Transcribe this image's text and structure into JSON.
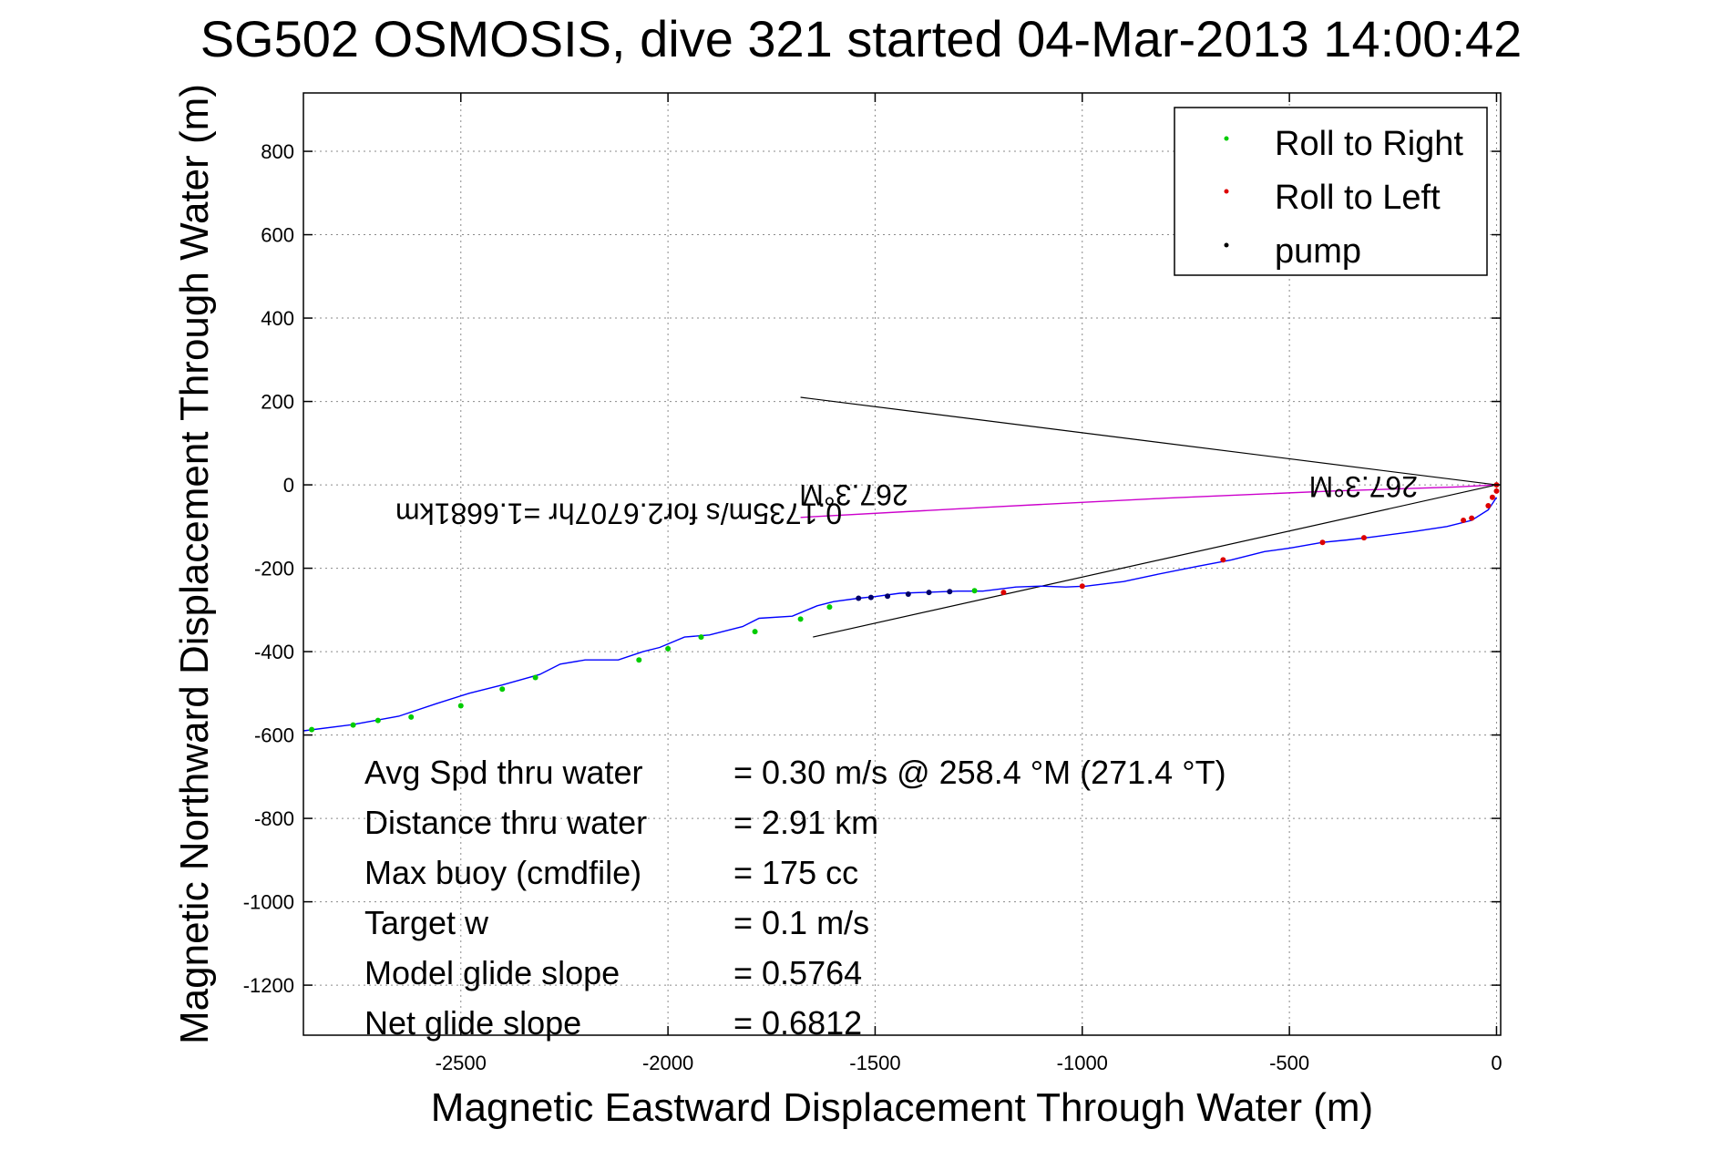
{
  "chart_data": {
    "type": "line",
    "title": "SG502 OSMOSIS, dive 321 started 04-Mar-2013 14:00:42",
    "xlabel": "Magnetic Eastward Displacement Through Water (m)",
    "ylabel": "Magnetic Northward Displacement Through Water (m)",
    "xlim": [
      -2880,
      10
    ],
    "ylim": [
      -1320,
      940
    ],
    "xticks": [
      -2500,
      -2000,
      -1500,
      -1000,
      -500,
      0
    ],
    "yticks": [
      -1200,
      -1000,
      -800,
      -600,
      -400,
      -200,
      0,
      200,
      400,
      600,
      800
    ],
    "grid": true,
    "legend_position": "top-right",
    "legend": [
      {
        "label": "Roll to Right",
        "color": "#00cc00"
      },
      {
        "label": "Roll to Left",
        "color": "#dd0000"
      },
      {
        "label": "pump",
        "color": "#000000"
      }
    ],
    "series": [
      {
        "color": "#0000ff",
        "x": [
          -2880,
          -2760,
          -2650,
          -2560,
          -2480,
          -2400,
          -2310,
          -2260,
          -2200,
          -2120,
          -2060,
          -2020,
          -1960,
          -1900,
          -1820,
          -1780,
          -1700,
          -1640,
          -1600,
          -1540,
          -1500,
          -1440,
          -1380,
          -1300,
          -1240,
          -1160,
          -1100,
          -1040,
          -990,
          -900,
          -820,
          -720,
          -640,
          -560,
          -500,
          -420,
          -360,
          -300,
          -200,
          -120,
          -60,
          -20,
          0
        ],
        "y": [
          -590,
          -575,
          -555,
          -525,
          -500,
          -480,
          -455,
          -430,
          -420,
          -420,
          -400,
          -390,
          -365,
          -360,
          -340,
          -320,
          -315,
          -290,
          -280,
          -272,
          -268,
          -260,
          -258,
          -255,
          -255,
          -245,
          -243,
          -245,
          -243,
          -232,
          -215,
          -195,
          -180,
          -160,
          -152,
          -138,
          -132,
          -125,
          -112,
          -100,
          -85,
          -60,
          -30
        ]
      },
      {
        "color": "#cc00cc",
        "x": [
          -1680,
          -1200,
          -800,
          -400,
          -100,
          0
        ],
        "y": [
          -78,
          -52,
          -32,
          -15,
          -5,
          0
        ]
      }
    ],
    "points": {
      "roll_right": [
        {
          "x": -2860,
          "y": -587
        },
        {
          "x": -2760,
          "y": -576
        },
        {
          "x": -2700,
          "y": -565
        },
        {
          "x": -2620,
          "y": -557
        },
        {
          "x": -2500,
          "y": -530
        },
        {
          "x": -2400,
          "y": -490
        },
        {
          "x": -2320,
          "y": -462
        },
        {
          "x": -2070,
          "y": -420
        },
        {
          "x": -2000,
          "y": -393
        },
        {
          "x": -1920,
          "y": -365
        },
        {
          "x": -1790,
          "y": -352
        },
        {
          "x": -1680,
          "y": -322
        },
        {
          "x": -1610,
          "y": -293
        },
        {
          "x": -1260,
          "y": -254
        }
      ],
      "roll_left": [
        {
          "x": -1190,
          "y": -258
        },
        {
          "x": -1000,
          "y": -243
        },
        {
          "x": -660,
          "y": -180
        },
        {
          "x": -420,
          "y": -138
        },
        {
          "x": -320,
          "y": -127
        },
        {
          "x": -80,
          "y": -85
        },
        {
          "x": -60,
          "y": -80
        },
        {
          "x": -20,
          "y": -50
        },
        {
          "x": -10,
          "y": -30
        },
        {
          "x": 0,
          "y": -15
        },
        {
          "x": 0,
          "y": 0
        }
      ],
      "pump": [
        {
          "x": -1540,
          "y": -272
        },
        {
          "x": -1510,
          "y": -270
        },
        {
          "x": -1470,
          "y": -267
        },
        {
          "x": -1420,
          "y": -262
        },
        {
          "x": -1370,
          "y": -258
        },
        {
          "x": -1320,
          "y": -256
        }
      ]
    },
    "cone_lines": [
      {
        "x": [
          -1680,
          0
        ],
        "y": [
          210,
          0
        ]
      },
      {
        "x": [
          -1650,
          0
        ],
        "y": [
          -365,
          0
        ]
      }
    ],
    "annotations": [
      {
        "text": "0.1735m/s for2.6707hr =1.6681km",
        "x": -1580,
        "y": -45,
        "rotation": 180
      },
      {
        "text": "267.3°M",
        "x": -1420,
        "y": 0,
        "rotation": 180
      },
      {
        "text": "267.3°M",
        "x": -190,
        "y": 20,
        "rotation": 180
      }
    ],
    "stats": [
      {
        "label": "Avg Spd thru water",
        "value": "=  0.30 m/s @ 258.4 °M (271.4 °T)"
      },
      {
        "label": "Distance thru water",
        "value": "=  2.91 km"
      },
      {
        "label": "Max buoy (cmdfile)",
        "value": "= 175 cc"
      },
      {
        "label": "Target w",
        "value": "= 0.1 m/s"
      },
      {
        "label": "Model glide slope",
        "value": "= 0.5764"
      },
      {
        "label": "Net glide slope",
        "value": "= 0.6812"
      }
    ]
  }
}
